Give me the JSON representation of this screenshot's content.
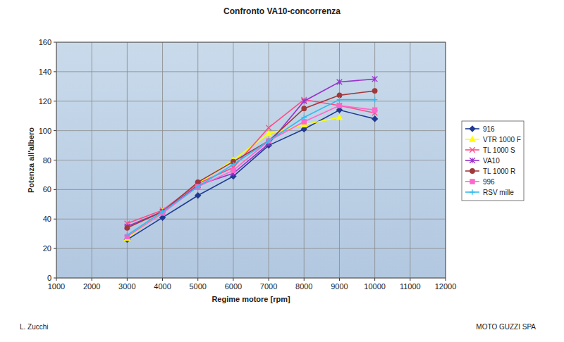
{
  "chart_data": {
    "type": "line",
    "title": "Confronto VA10-concorrenza",
    "x_label": "Regime motore [rpm]",
    "y_label": "Potenza all'albero",
    "annotations": [
      "L. Zucchi",
      "MOTO GUZZI SPA"
    ],
    "x": [
      3000,
      4000,
      5000,
      6000,
      7000,
      8000,
      9000,
      10000
    ],
    "series": [
      {
        "name": "916",
        "color": "#1f3a93",
        "marker": "diamond",
        "values": [
          26,
          41,
          56,
          69,
          90,
          101,
          114,
          108
        ]
      },
      {
        "name": "VTR 1000 F",
        "color": "#ffff00",
        "marker": "triangle",
        "values": [
          27,
          45,
          64,
          80,
          98,
          104,
          109,
          null
        ]
      },
      {
        "name": "TL 1000 S",
        "color": "#ff4d88",
        "marker": "x",
        "values": [
          37,
          46,
          64,
          75,
          102,
          121,
          117,
          112
        ]
      },
      {
        "name": "VA10",
        "color": "#9933cc",
        "marker": "star",
        "values": [
          35,
          45,
          63,
          71,
          91,
          120,
          133,
          135
        ]
      },
      {
        "name": "TL 1000 R",
        "color": "#a0393a",
        "marker": "circle",
        "values": [
          34,
          45,
          65,
          79,
          93,
          115,
          124,
          127
        ]
      },
      {
        "name": "996",
        "color": "#ff66cc",
        "marker": "square",
        "values": [
          28,
          44,
          62,
          73,
          93,
          106,
          117,
          114
        ]
      },
      {
        "name": "RSV mille",
        "color": "#33bbee",
        "marker": "plus",
        "values": [
          29,
          45,
          62,
          77,
          93,
          109,
          121,
          121
        ]
      }
    ],
    "xlim": [
      1000,
      12000
    ],
    "xticks": [
      1000,
      2000,
      3000,
      4000,
      5000,
      6000,
      7000,
      8000,
      9000,
      10000,
      11000,
      12000
    ],
    "ylim": [
      0,
      160
    ],
    "yticks": [
      0,
      20,
      40,
      60,
      80,
      100,
      120,
      140,
      160
    ],
    "grid": true,
    "legend": "right"
  }
}
